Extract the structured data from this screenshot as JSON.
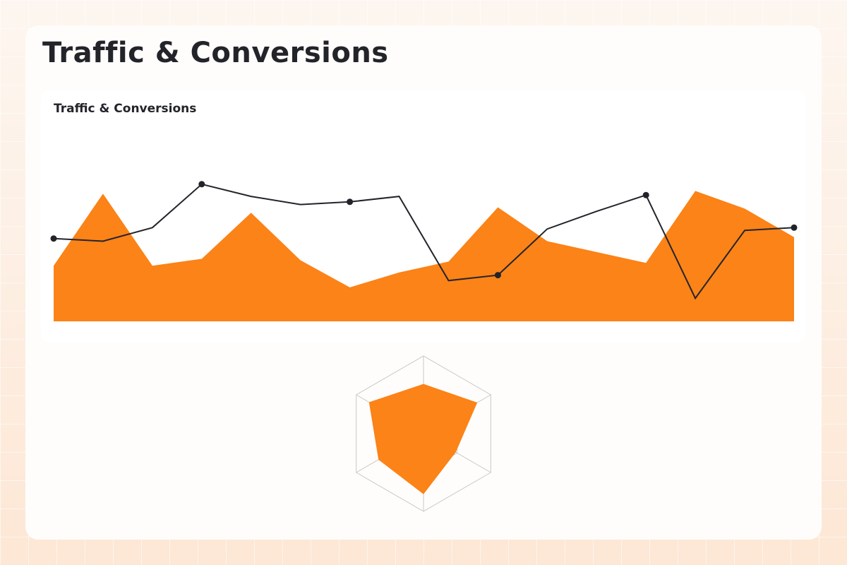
{
  "page": {
    "title": "Traffic & Conversions"
  },
  "colors": {
    "accent": "#fb8317",
    "line": "#23242a",
    "grid": "#c8c8c8"
  },
  "chart_data": [
    {
      "type": "area",
      "title": "Traffic & Conversions",
      "x": [
        1,
        2,
        3,
        4,
        5,
        6,
        7,
        8,
        9,
        10,
        11,
        12,
        13,
        14,
        15,
        16
      ],
      "series": [
        {
          "type": "area",
          "values": [
            41,
            94,
            41,
            46,
            80,
            45,
            25,
            36,
            44,
            84,
            59,
            51,
            43,
            96,
            83,
            62
          ]
        },
        {
          "type": "line",
          "values": [
            61,
            59,
            69,
            101,
            92,
            86,
            88,
            92,
            30,
            34,
            68,
            81,
            93,
            17,
            67,
            69
          ],
          "markers": [
            0,
            3,
            6,
            9,
            12,
            15
          ]
        }
      ],
      "ylim": [
        0,
        130
      ],
      "grid": false,
      "legend": "none"
    },
    {
      "type": "radar",
      "axes_count": 6,
      "values": [
        64,
        80,
        48,
        78,
        67,
        81
      ],
      "rlim": [
        0,
        100
      ],
      "rings": 2
    }
  ]
}
